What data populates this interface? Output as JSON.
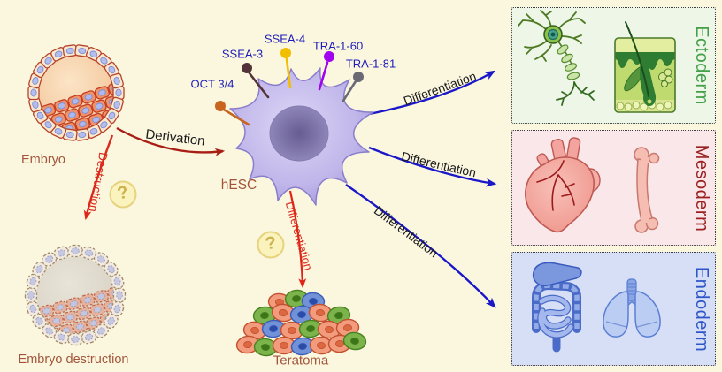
{
  "figure": {
    "background_color": "#fbf7df",
    "embryo": {
      "label": "Embryo"
    },
    "embryo_destruction": {
      "label": "Embryo destruction"
    },
    "arrows": {
      "derivation": {
        "label": "Derivation",
        "color": "#a81e14"
      },
      "destruction": {
        "label": "Destruction",
        "color": "#d92a1c",
        "question_mark": "?"
      },
      "teratoma_differentiation": {
        "label": "Differentiation",
        "color": "#e02518",
        "question_mark": "?"
      },
      "differentiation_blue_color": "#1a17c9"
    },
    "hesc": {
      "label": "hESC",
      "markers": [
        {
          "name": "OCT 3/4",
          "color": "#c8641e"
        },
        {
          "name": "SSEA-3",
          "color": "#53333a"
        },
        {
          "name": "SSEA-4",
          "color": "#f2be00"
        },
        {
          "name": "TRA-1-60",
          "color": "#a203ee"
        },
        {
          "name": "TRA-1-81",
          "color": "#6a6a74"
        }
      ]
    },
    "teratoma": {
      "label": "Teratoma"
    },
    "germ_layers": [
      {
        "name": "Ectoderm",
        "arrow_label": "Differentiation",
        "label_color": "#44a048",
        "bg_color": "#edf6e7",
        "organs": [
          "neuron",
          "skin"
        ]
      },
      {
        "name": "Mesoderm",
        "arrow_label": "Differentiation",
        "label_color": "#9b2020",
        "bg_color": "#f9e7e9",
        "organs": [
          "heart",
          "bone"
        ]
      },
      {
        "name": "Endoderm",
        "arrow_label": "Differentiation",
        "label_color": "#2f55c8",
        "bg_color": "#d6dff5",
        "organs": [
          "digestive system",
          "lungs"
        ]
      }
    ]
  }
}
